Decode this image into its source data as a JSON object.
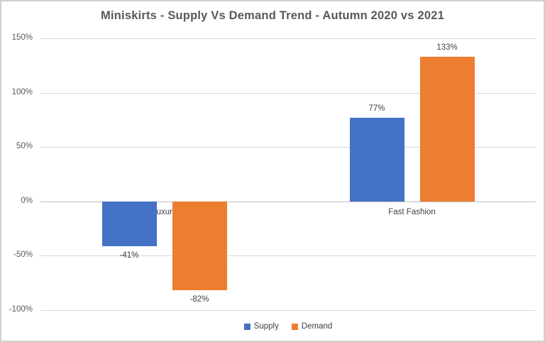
{
  "chart_data": {
    "type": "bar",
    "title": "Miniskirts - Supply Vs Demand Trend - Autumn 2020 vs 2021",
    "categories": [
      "Luxury",
      "Fast Fashion"
    ],
    "series": [
      {
        "name": "Supply",
        "color": "#4472C4",
        "values": [
          -41,
          77
        ],
        "labels": [
          "-41%",
          "77%"
        ]
      },
      {
        "name": "Demand",
        "color": "#ED7D31",
        "values": [
          -82,
          133
        ],
        "labels": [
          "-82%",
          "133%"
        ]
      }
    ],
    "yticks": [
      {
        "value": 150,
        "label": "150%"
      },
      {
        "value": 100,
        "label": "100%"
      },
      {
        "value": 50,
        "label": "50%"
      },
      {
        "value": 0,
        "label": "0%"
      },
      {
        "value": -50,
        "label": "-50%"
      },
      {
        "value": -100,
        "label": "-100%"
      }
    ],
    "ylim": [
      -100,
      150
    ],
    "grid": true,
    "legend_position": "bottom"
  },
  "colors": {
    "background": "#FFFFFF",
    "border": "#CFCFCF",
    "gridline": "#D9D9D9",
    "zero_axis": "#BFBFBF",
    "title_text": "#595959",
    "axis_text": "#595959",
    "label_text": "#404040"
  }
}
